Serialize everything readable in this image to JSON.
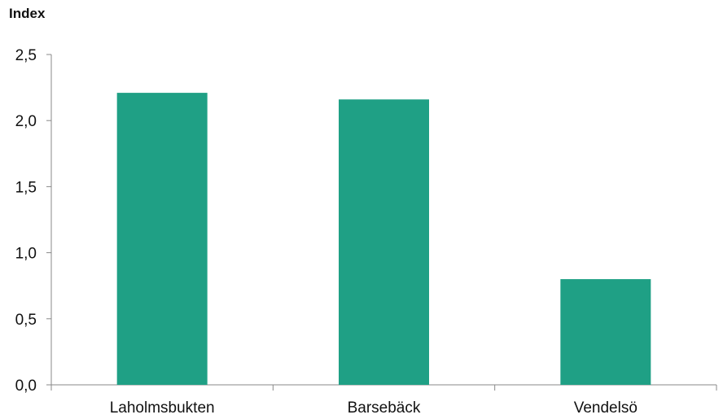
{
  "chart_data": {
    "type": "bar",
    "ylabel": "Index",
    "xlabel": "",
    "title": "",
    "categories": [
      "Laholmsbukten",
      "Barsebäck",
      "Vendelsö"
    ],
    "values": [
      2.21,
      2.16,
      0.8
    ],
    "ylim": [
      0,
      2.5
    ],
    "yticks": [
      "0,0",
      "0,5",
      "1,0",
      "1,5",
      "2,0",
      "2,5"
    ],
    "grid": false,
    "bar_color": "#1fa085",
    "axis_color": "#888888"
  }
}
